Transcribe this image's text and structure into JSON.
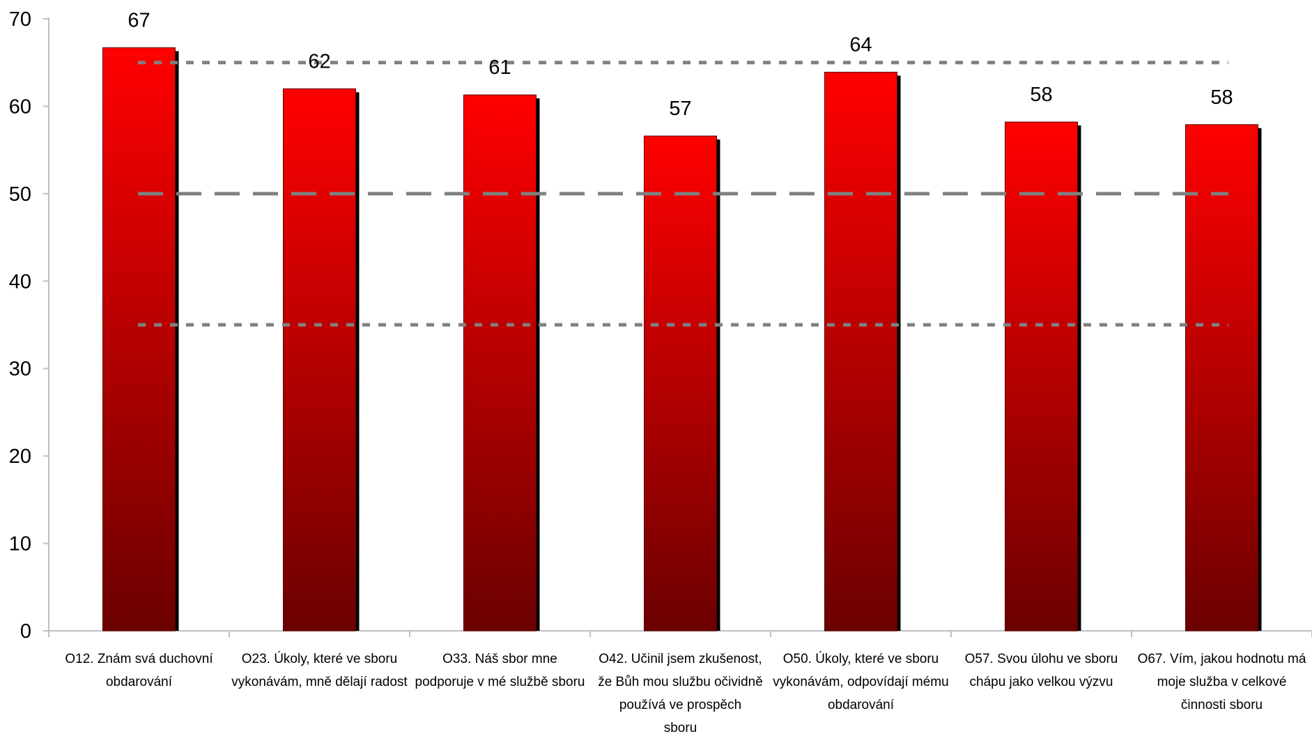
{
  "chart_data": {
    "type": "bar",
    "title": "",
    "xlabel": "",
    "ylabel": "",
    "ylim": [
      0,
      70
    ],
    "yticks": [
      0,
      10,
      20,
      30,
      40,
      50,
      60,
      70
    ],
    "categories": [
      [
        "O12. Znám svá duchovní",
        "obdarování"
      ],
      [
        "O23. Úkoly, které ve sboru",
        "vykonávám, mně dělají radost"
      ],
      [
        "O33. Náš sbor mne",
        "podporuje v mé službě sboru"
      ],
      [
        "O42. Učinil jsem zkušenost,",
        "že Bůh mou službu očividně",
        "používá ve prospěch",
        "sboru"
      ],
      [
        "O50. Úkoly, které ve sboru",
        "vykonávám, odpovídají mému",
        "obdarování"
      ],
      [
        "O57. Svou úlohu ve sboru",
        "chápu jako velkou výzvu"
      ],
      [
        "O67. Vím, jakou hodnotu má",
        "moje služba v celkové",
        "činnosti sboru"
      ]
    ],
    "values": [
      66.7,
      62.0,
      61.3,
      56.6,
      63.9,
      58.2,
      57.9
    ],
    "data_labels": [
      "67",
      "62",
      "61",
      "57",
      "64",
      "58",
      "58"
    ],
    "reference_lines": [
      {
        "value": 65,
        "style": "dotted"
      },
      {
        "value": 50,
        "style": "dashed"
      },
      {
        "value": 35,
        "style": "dotted"
      }
    ],
    "grid": false,
    "legend": "none",
    "colors": {
      "bar_top": "#ff0000",
      "bar_bottom": "#6b0000",
      "bar_shadow": "#000000",
      "reference_line": "#808080",
      "axis": "#bfbfbf"
    }
  }
}
